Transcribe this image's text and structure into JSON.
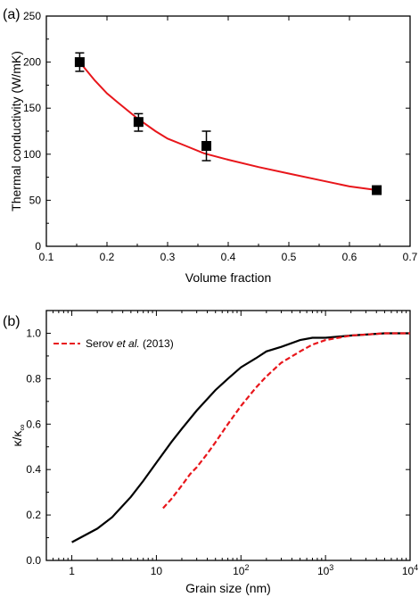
{
  "colors": {
    "fit": "#e8161b",
    "marker": "#000000",
    "serov": "#e8161b",
    "model": "#000000"
  },
  "chart_data": [
    {
      "panel_label": "(a)",
      "type": "scatter",
      "xlabel": "Volume fraction",
      "ylabel": "Thermal conductivity (W/mK)",
      "xlim": [
        0.1,
        0.7
      ],
      "ylim": [
        0,
        250
      ],
      "xticks": [
        0.1,
        0.2,
        0.3,
        0.4,
        0.5,
        0.6,
        0.7
      ],
      "xtick_labels": [
        "0.1",
        "0.2",
        "0.3",
        "0.4",
        "0.5",
        "0.6",
        "0.7"
      ],
      "yticks": [
        0,
        50,
        100,
        150,
        200,
        250
      ],
      "ytick_labels": [
        "0",
        "50",
        "100",
        "150",
        "200",
        "250"
      ],
      "grid": false,
      "points": [
        {
          "x": 0.155,
          "y": 200,
          "err_low": 190,
          "err_high": 210
        },
        {
          "x": 0.252,
          "y": 135,
          "err_low": 125,
          "err_high": 144
        },
        {
          "x": 0.364,
          "y": 109,
          "err_low": 93,
          "err_high": 125
        },
        {
          "x": 0.645,
          "y": 61,
          "err_low": 58,
          "err_high": 64
        }
      ],
      "fit_curve": {
        "x": [
          0.155,
          0.18,
          0.2,
          0.22,
          0.25,
          0.28,
          0.3,
          0.33,
          0.36,
          0.4,
          0.45,
          0.5,
          0.55,
          0.6,
          0.645
        ],
        "y": [
          200,
          180,
          166,
          155,
          139,
          125,
          117,
          109,
          101,
          94,
          86,
          79,
          72,
          65,
          61
        ]
      }
    },
    {
      "panel_label": "(b)",
      "type": "line",
      "xlabel": "Grain size (nm)",
      "ylabel": "κ/κ",
      "ylabel_sub": "∞",
      "xscale": "log",
      "xlim": [
        0.5,
        10000
      ],
      "ylim": [
        0,
        1.1
      ],
      "xticks": [
        1,
        10,
        100,
        1000,
        10000
      ],
      "xtick_labels": [
        {
          "base": "1",
          "exp": ""
        },
        {
          "base": "10",
          "exp": ""
        },
        {
          "base": "10",
          "exp": "2"
        },
        {
          "base": "10",
          "exp": "3"
        },
        {
          "base": "10",
          "exp": "4"
        }
      ],
      "yticks": [
        0,
        0.2,
        0.4,
        0.6,
        0.8,
        1.0
      ],
      "ytick_labels": [
        "0.0",
        "0.2",
        "0.4",
        "0.6",
        "0.8",
        "1.0"
      ],
      "grid": false,
      "legend_position": "top-left",
      "series": [
        {
          "style": "solid",
          "x": [
            1,
            2,
            3,
            5,
            7,
            10,
            15,
            20,
            30,
            50,
            70,
            100,
            150,
            200,
            300,
            500,
            700,
            1000,
            2000,
            5000,
            10000
          ],
          "y": [
            0.08,
            0.14,
            0.19,
            0.28,
            0.35,
            0.43,
            0.52,
            0.58,
            0.66,
            0.75,
            0.8,
            0.85,
            0.89,
            0.92,
            0.94,
            0.97,
            0.98,
            0.98,
            0.99,
            1.0,
            1.0
          ]
        },
        {
          "name_parts": [
            "Serov ",
            "et al.",
            " (2013)"
          ],
          "style": "dashed",
          "x": [
            12,
            15,
            20,
            25,
            30,
            40,
            50,
            70,
            100,
            150,
            200,
            300,
            500,
            700,
            1000,
            2000,
            5000,
            10000
          ],
          "y": [
            0.23,
            0.27,
            0.33,
            0.38,
            0.41,
            0.47,
            0.52,
            0.6,
            0.68,
            0.76,
            0.81,
            0.87,
            0.92,
            0.95,
            0.97,
            0.99,
            1.0,
            1.0
          ]
        }
      ]
    }
  ]
}
